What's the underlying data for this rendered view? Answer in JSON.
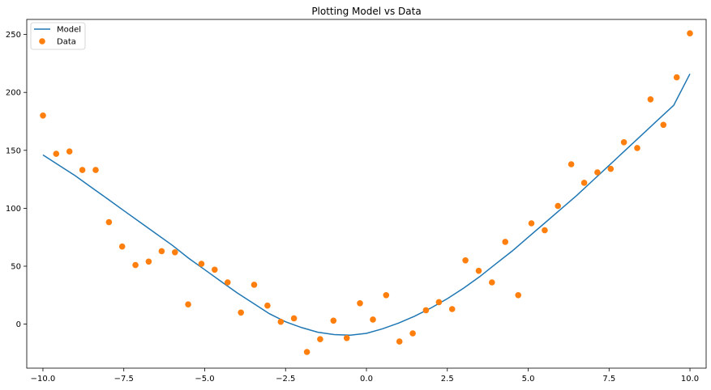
{
  "chart_data": {
    "type": "scatter",
    "title": "Plotting Model vs Data",
    "xlabel": "",
    "ylabel": "",
    "xlim": [
      -10.5,
      10.5
    ],
    "ylim": [
      -38,
      263
    ],
    "xticks": [
      -10.0,
      -7.5,
      -5.0,
      -2.5,
      0.0,
      2.5,
      5.0,
      7.5,
      10.0
    ],
    "xtick_labels": [
      "−10.0",
      "−7.5",
      "−5.0",
      "−2.5",
      "0.0",
      "2.5",
      "5.0",
      "7.5",
      "10.0"
    ],
    "yticks": [
      0,
      50,
      100,
      150,
      200,
      250
    ],
    "ytick_labels": [
      "0",
      "50",
      "100",
      "150",
      "200",
      "250"
    ],
    "grid": false,
    "legend_position": "top-left",
    "series": [
      {
        "name": "Model",
        "kind": "line",
        "color": "#1f77b4",
        "x": [
          -10.0,
          -9.5,
          -9.0,
          -8.5,
          -8.0,
          -7.5,
          -7.0,
          -6.5,
          -6.0,
          -5.5,
          -5.0,
          -4.5,
          -4.0,
          -3.5,
          -3.0,
          -2.5,
          -2.0,
          -1.5,
          -1.0,
          -0.5,
          0.0,
          0.5,
          1.0,
          1.5,
          2.0,
          2.5,
          3.0,
          3.5,
          4.0,
          4.5,
          5.0,
          5.5,
          6.0,
          6.5,
          7.0,
          7.5,
          8.0,
          8.5,
          9.0,
          9.5,
          10.0
        ],
        "y": [
          146,
          137,
          128,
          118,
          108,
          98,
          88,
          78,
          68,
          57,
          47,
          37,
          27,
          18,
          9,
          2,
          -3,
          -7,
          -9,
          -9.5,
          -8,
          -4,
          1,
          7,
          14,
          22,
          31,
          41,
          52,
          63,
          75,
          87,
          99,
          111,
          124,
          137,
          150,
          163,
          176,
          189,
          216
        ]
      },
      {
        "name": "Data",
        "kind": "scatter",
        "color": "#ff7f0e",
        "x": [
          -10.0,
          -9.59,
          -9.18,
          -8.78,
          -8.37,
          -7.96,
          -7.55,
          -7.14,
          -6.73,
          -6.33,
          -5.92,
          -5.51,
          -5.1,
          -4.69,
          -4.29,
          -3.88,
          -3.47,
          -3.06,
          -2.65,
          -2.24,
          -1.84,
          -1.43,
          -1.02,
          -0.61,
          -0.2,
          0.2,
          0.61,
          1.02,
          1.43,
          1.84,
          2.24,
          2.65,
          3.06,
          3.47,
          3.88,
          4.29,
          4.69,
          5.1,
          5.51,
          5.92,
          6.33,
          6.73,
          7.14,
          7.55,
          7.96,
          8.37,
          8.78,
          9.18,
          9.59,
          10.0
        ],
        "y": [
          180,
          147,
          149,
          133,
          133,
          88,
          67,
          51,
          54,
          63,
          62,
          17,
          52,
          47,
          36,
          10,
          34,
          16,
          2,
          5,
          -24,
          -13,
          3,
          -12,
          18,
          4,
          25,
          -15,
          -8,
          12,
          19,
          13,
          55,
          46,
          36,
          71,
          25,
          87,
          81,
          102,
          138,
          122,
          131,
          134,
          157,
          152,
          194,
          172,
          213,
          251
        ]
      }
    ]
  }
}
